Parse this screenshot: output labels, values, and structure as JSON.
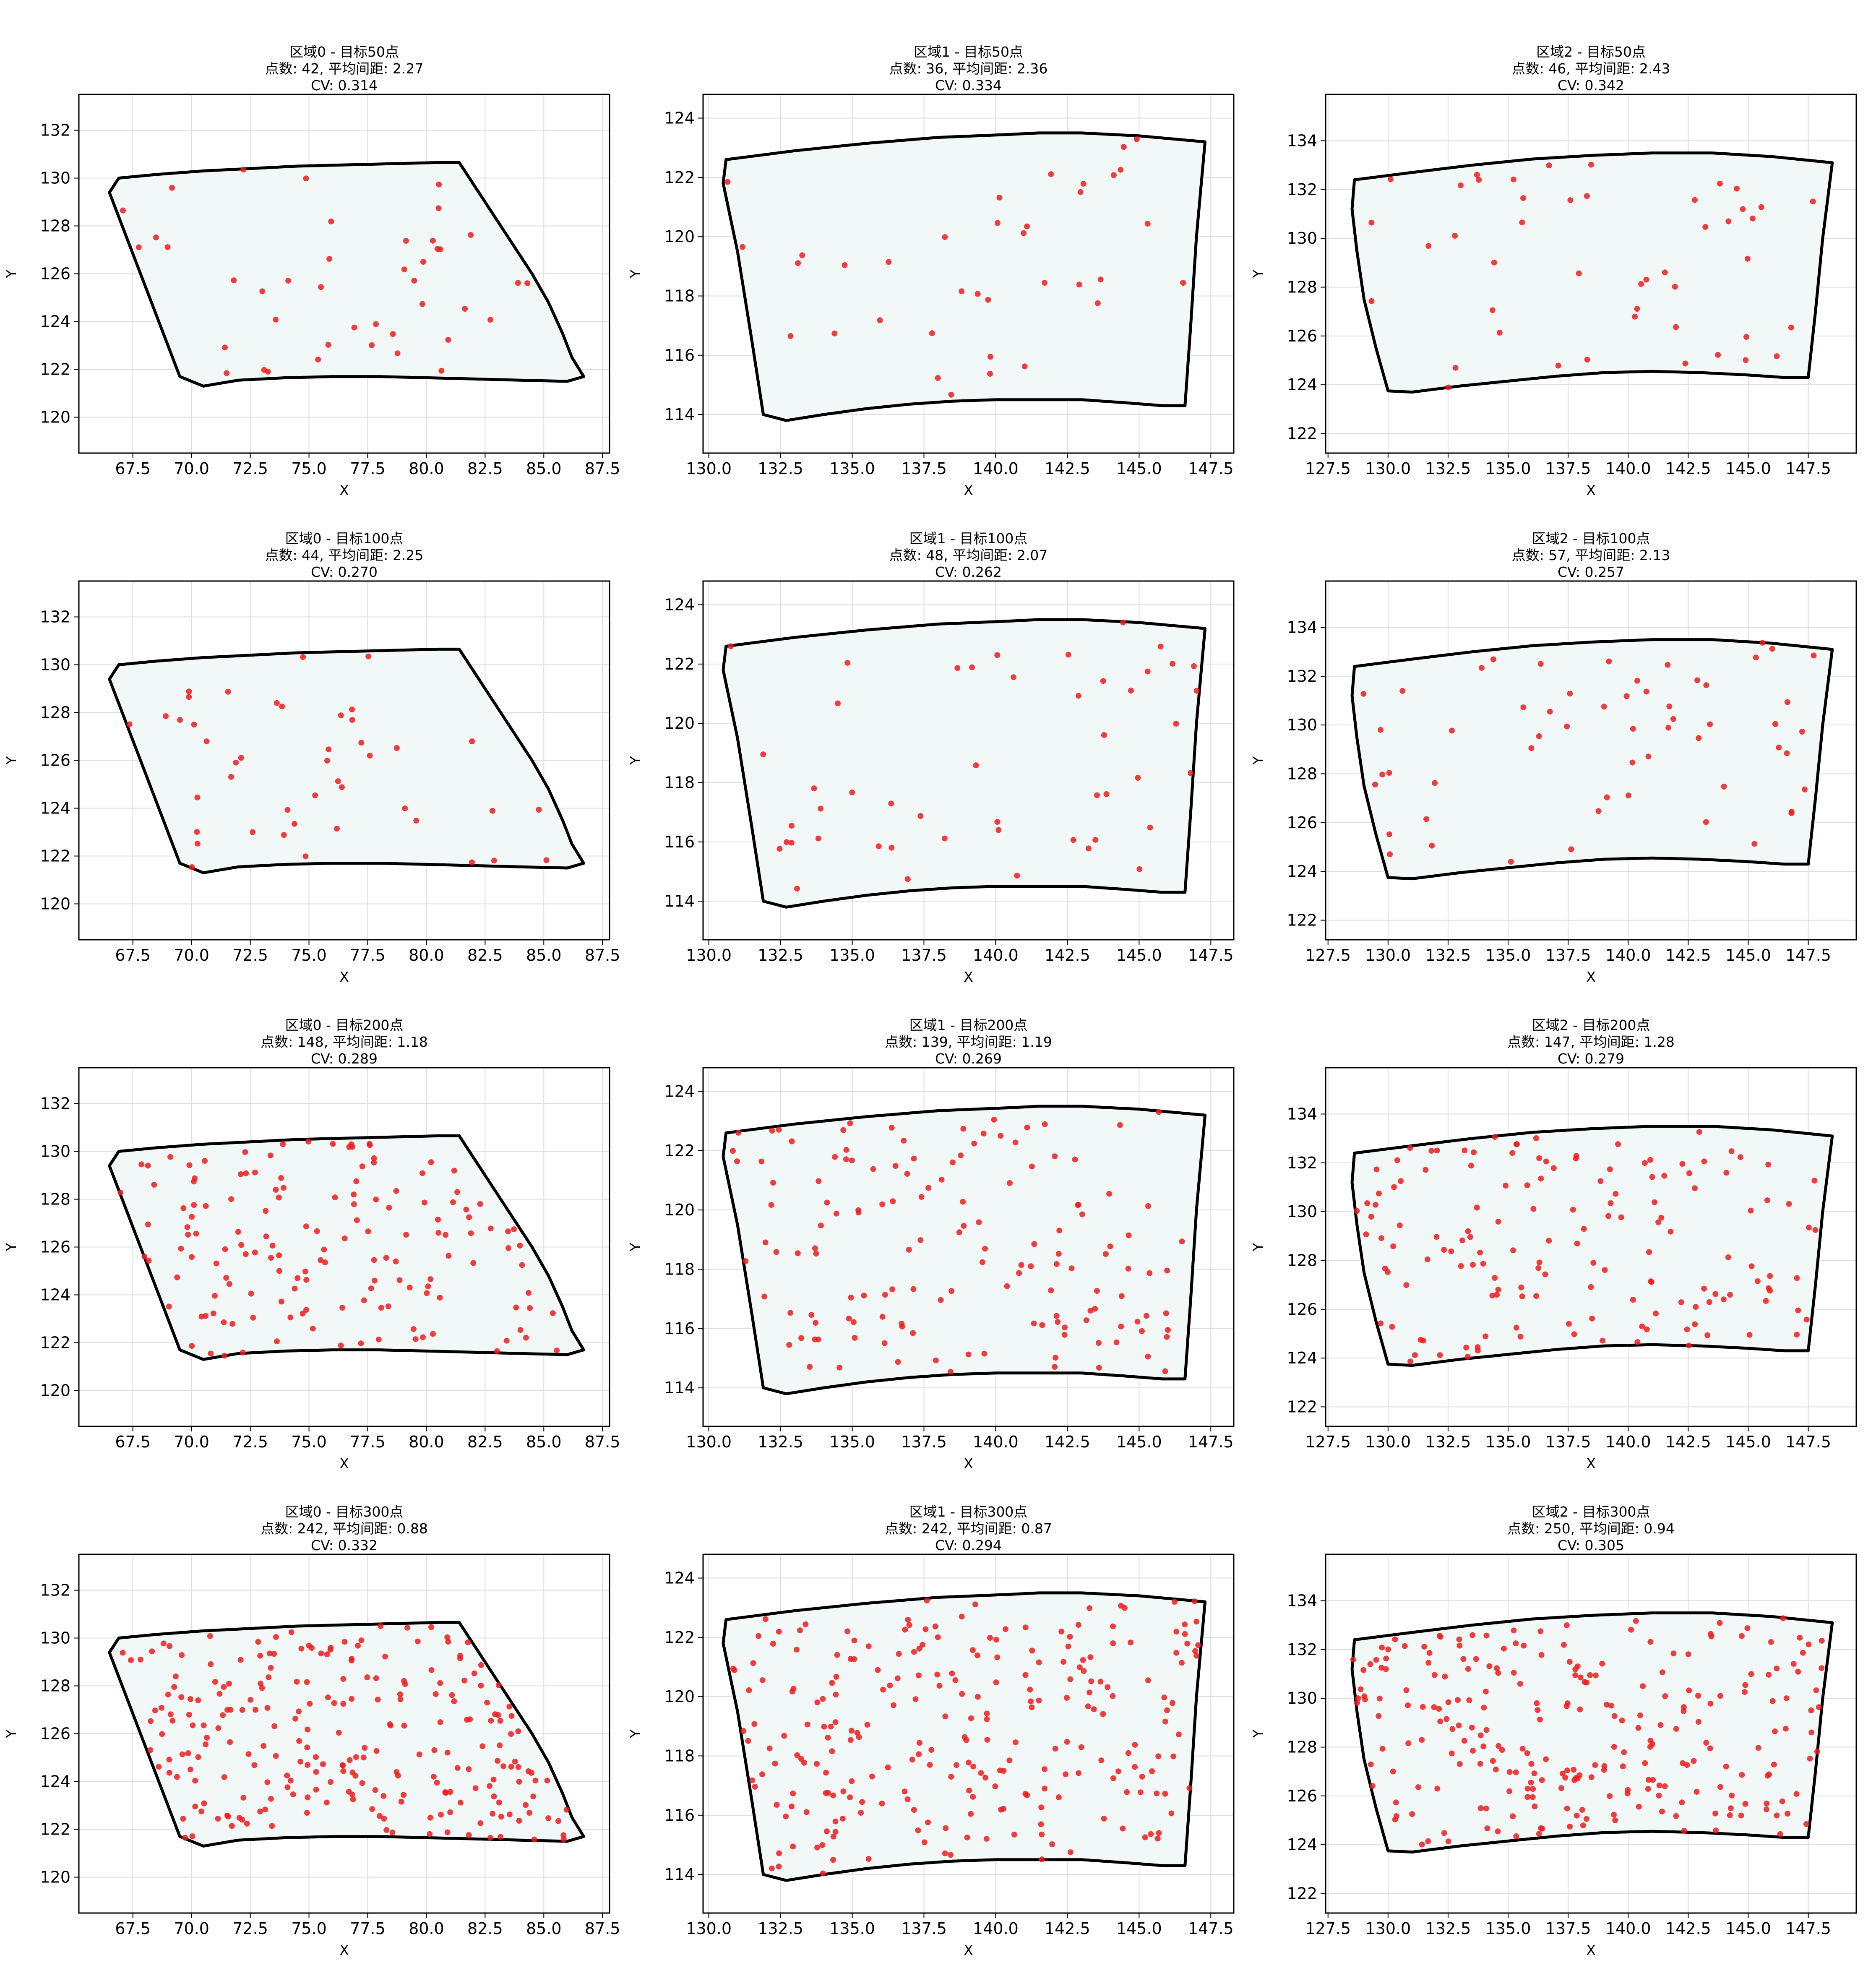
{
  "figure_title": "",
  "colors": {
    "region_fill": "#f2f8f8",
    "region_edge": "#000000",
    "points": "#ee1c1c",
    "grid": "#dddddd"
  },
  "chart_data": [
    {
      "type": "scatter",
      "region": "r0",
      "title_lines": [
        "区域0 - 目标50点",
        "点数: 42, 平均间距: 2.27",
        "CV: 0.314"
      ],
      "xlabel": "X",
      "ylabel": "Y",
      "points_shown": 42
    },
    {
      "type": "scatter",
      "region": "r1",
      "title_lines": [
        "区域1 - 目标50点",
        "点数: 36, 平均间距: 2.36",
        "CV: 0.334"
      ],
      "xlabel": "X",
      "ylabel": "Y",
      "points_shown": 36
    },
    {
      "type": "scatter",
      "region": "r2",
      "title_lines": [
        "区域2 - 目标50点",
        "点数: 46, 平均间距: 2.43",
        "CV: 0.342"
      ],
      "xlabel": "X",
      "ylabel": "Y",
      "points_shown": 46
    },
    {
      "type": "scatter",
      "region": "r0",
      "title_lines": [
        "区域0 - 目标100点",
        "点数: 44, 平均间距: 2.25",
        "CV: 0.270"
      ],
      "xlabel": "X",
      "ylabel": "Y",
      "points_shown": 44
    },
    {
      "type": "scatter",
      "region": "r1",
      "title_lines": [
        "区域1 - 目标100点",
        "点数: 48, 平均间距: 2.07",
        "CV: 0.262"
      ],
      "xlabel": "X",
      "ylabel": "Y",
      "points_shown": 48
    },
    {
      "type": "scatter",
      "region": "r2",
      "title_lines": [
        "区域2 - 目标100点",
        "点数: 57, 平均间距: 2.13",
        "CV: 0.257"
      ],
      "xlabel": "X",
      "ylabel": "Y",
      "points_shown": 57
    },
    {
      "type": "scatter",
      "region": "r0",
      "title_lines": [
        "区域0 - 目标200点",
        "点数: 148, 平均间距: 1.18",
        "CV: 0.289"
      ],
      "xlabel": "X",
      "ylabel": "Y",
      "points_shown": 148
    },
    {
      "type": "scatter",
      "region": "r1",
      "title_lines": [
        "区域1 - 目标200点",
        "点数: 139, 平均间距: 1.19",
        "CV: 0.269"
      ],
      "xlabel": "X",
      "ylabel": "Y",
      "points_shown": 139
    },
    {
      "type": "scatter",
      "region": "r2",
      "title_lines": [
        "区域2 - 目标200点",
        "点数: 147, 平均间距: 1.28",
        "CV: 0.279"
      ],
      "xlabel": "X",
      "ylabel": "Y",
      "points_shown": 147
    },
    {
      "type": "scatter",
      "region": "r0",
      "title_lines": [
        "区域0 - 目标300点",
        "点数: 242, 平均间距: 0.88",
        "CV: 0.332"
      ],
      "xlabel": "X",
      "ylabel": "Y",
      "points_shown": 242
    },
    {
      "type": "scatter",
      "region": "r1",
      "title_lines": [
        "区域1 - 目标300点",
        "点数: 242, 平均间距: 0.87",
        "CV: 0.294"
      ],
      "xlabel": "X",
      "ylabel": "Y",
      "points_shown": 242
    },
    {
      "type": "scatter",
      "region": "r2",
      "title_lines": [
        "区域2 - 目标300点",
        "点数: 250, 平均间距: 0.94",
        "CV: 0.305"
      ],
      "xlabel": "X",
      "ylabel": "Y",
      "points_shown": 250
    }
  ],
  "regions": {
    "r0": {
      "xlim": [
        65.2,
        87.8
      ],
      "ylim": [
        118.5,
        133.5
      ],
      "xticks": [
        67.5,
        70.0,
        72.5,
        75.0,
        77.5,
        80.0,
        82.5,
        85.0,
        87.5
      ],
      "xtick_labels": [
        "67.5",
        "70.0",
        "72.5",
        "75.0",
        "77.5",
        "80.0",
        "82.5",
        "85.0",
        "87.5"
      ],
      "yticks": [
        120,
        122,
        124,
        126,
        128,
        130,
        132
      ],
      "ytick_labels": [
        "120",
        "122",
        "124",
        "126",
        "128",
        "130",
        "132"
      ],
      "boundary": [
        [
          66.9,
          130.0
        ],
        [
          68.5,
          130.15
        ],
        [
          70.5,
          130.3
        ],
        [
          72.5,
          130.4
        ],
        [
          74.5,
          130.5
        ],
        [
          76.5,
          130.55
        ],
        [
          78.5,
          130.6
        ],
        [
          80.5,
          130.65
        ],
        [
          81.4,
          130.65
        ],
        [
          82.5,
          129.0
        ],
        [
          83.5,
          127.5
        ],
        [
          84.5,
          126.0
        ],
        [
          85.2,
          124.8
        ],
        [
          85.8,
          123.5
        ],
        [
          86.2,
          122.5
        ],
        [
          86.7,
          121.7
        ],
        [
          86.0,
          121.5
        ],
        [
          84.0,
          121.55
        ],
        [
          82.0,
          121.6
        ],
        [
          80.0,
          121.65
        ],
        [
          78.0,
          121.7
        ],
        [
          76.0,
          121.7
        ],
        [
          74.0,
          121.65
        ],
        [
          72.0,
          121.55
        ],
        [
          70.5,
          121.3
        ],
        [
          69.5,
          121.7
        ],
        [
          66.5,
          129.4
        ]
      ]
    },
    "r1": {
      "xlim": [
        129.8,
        148.3
      ],
      "ylim": [
        112.7,
        124.8
      ],
      "xticks": [
        130.0,
        132.5,
        135.0,
        137.5,
        140.0,
        142.5,
        145.0,
        147.5
      ],
      "xtick_labels": [
        "130.0",
        "132.5",
        "135.0",
        "137.5",
        "140.0",
        "142.5",
        "145.0",
        "147.5"
      ],
      "yticks": [
        114,
        116,
        118,
        120,
        122,
        124
      ],
      "ytick_labels": [
        "114",
        "116",
        "118",
        "120",
        "122",
        "124"
      ],
      "boundary": [
        [
          130.6,
          122.6
        ],
        [
          133.0,
          122.9
        ],
        [
          135.5,
          123.15
        ],
        [
          138.0,
          123.35
        ],
        [
          140.5,
          123.45
        ],
        [
          141.5,
          123.5
        ],
        [
          143.0,
          123.5
        ],
        [
          145.0,
          123.4
        ],
        [
          147.3,
          123.2
        ],
        [
          147.0,
          120.0
        ],
        [
          146.8,
          117.0
        ],
        [
          146.6,
          114.3
        ],
        [
          145.8,
          114.3
        ],
        [
          144.5,
          114.4
        ],
        [
          143.0,
          114.5
        ],
        [
          141.5,
          114.5
        ],
        [
          140.0,
          114.5
        ],
        [
          138.5,
          114.45
        ],
        [
          137.0,
          114.35
        ],
        [
          135.5,
          114.2
        ],
        [
          134.0,
          114.0
        ],
        [
          132.7,
          113.8
        ],
        [
          131.9,
          114.0
        ],
        [
          131.5,
          116.5
        ],
        [
          131.0,
          119.5
        ],
        [
          130.5,
          121.8
        ]
      ]
    },
    "r2": {
      "xlim": [
        127.4,
        149.5
      ],
      "ylim": [
        121.2,
        135.9
      ],
      "xticks": [
        127.5,
        130.0,
        132.5,
        135.0,
        137.5,
        140.0,
        142.5,
        145.0,
        147.5
      ],
      "xtick_labels": [
        "127.5",
        "130.0",
        "132.5",
        "135.0",
        "137.5",
        "140.0",
        "142.5",
        "145.0",
        "147.5"
      ],
      "yticks": [
        122,
        124,
        126,
        128,
        130,
        132,
        134
      ],
      "ytick_labels": [
        "122",
        "124",
        "126",
        "128",
        "130",
        "132",
        "134"
      ],
      "boundary": [
        [
          128.6,
          132.4
        ],
        [
          131.0,
          132.7
        ],
        [
          133.5,
          133.0
        ],
        [
          136.0,
          133.25
        ],
        [
          138.5,
          133.4
        ],
        [
          141.0,
          133.5
        ],
        [
          143.5,
          133.5
        ],
        [
          146.0,
          133.35
        ],
        [
          148.5,
          133.1
        ],
        [
          148.1,
          130.0
        ],
        [
          147.8,
          127.0
        ],
        [
          147.5,
          124.3
        ],
        [
          146.5,
          124.3
        ],
        [
          145.0,
          124.4
        ],
        [
          143.0,
          124.5
        ],
        [
          141.0,
          124.55
        ],
        [
          139.0,
          124.5
        ],
        [
          137.0,
          124.35
        ],
        [
          135.0,
          124.15
        ],
        [
          133.0,
          123.95
        ],
        [
          131.0,
          123.7
        ],
        [
          130.0,
          123.75
        ],
        [
          129.5,
          125.5
        ],
        [
          129.0,
          127.5
        ],
        [
          128.7,
          129.5
        ],
        [
          128.5,
          131.2
        ]
      ]
    }
  }
}
